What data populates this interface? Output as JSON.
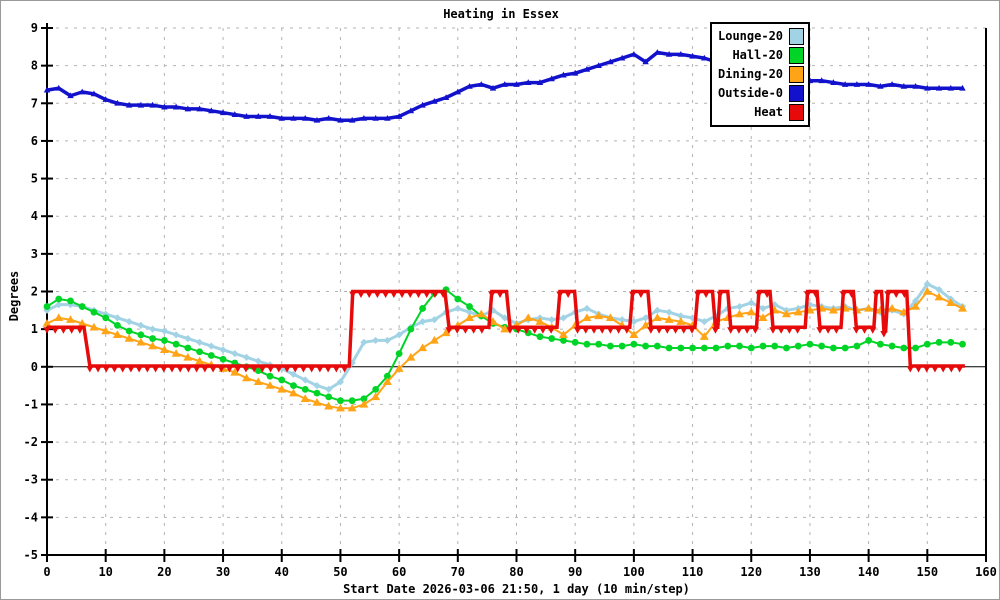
{
  "window": {
    "background": "#ffffff",
    "frame_color": "#9a9a9a"
  },
  "chart_data": {
    "type": "line",
    "title": "Heating in Essex",
    "xlabel": "Start Date 2026-03-06 21:50, 1 day (10 min/step)",
    "ylabel": "Degrees",
    "xlim": [
      0,
      160
    ],
    "ylim": [
      -5,
      9
    ],
    "xticks": [
      0,
      10,
      20,
      30,
      40,
      50,
      60,
      70,
      80,
      90,
      100,
      110,
      120,
      130,
      140,
      150,
      160
    ],
    "yticks": [
      -5,
      -4,
      -3,
      -2,
      -1,
      0,
      1,
      2,
      3,
      4,
      5,
      6,
      7,
      8,
      9
    ],
    "grid": true,
    "grid_color": "#b3b3b3",
    "zero_line_color": "#000000",
    "axis_color": "#000000",
    "legend_position": "top-right",
    "x_start": 0,
    "x_step": 2,
    "series": [
      {
        "name": "Lounge-20",
        "color": "#a2d3e5",
        "marker": "diamond",
        "line_width": 3,
        "values": [
          1.5,
          1.65,
          1.65,
          1.6,
          1.5,
          1.4,
          1.3,
          1.2,
          1.1,
          1.0,
          0.95,
          0.85,
          0.75,
          0.65,
          0.55,
          0.45,
          0.35,
          0.25,
          0.15,
          0.05,
          -0.05,
          -0.2,
          -0.35,
          -0.5,
          -0.6,
          -0.4,
          0.1,
          0.65,
          0.7,
          0.7,
          0.85,
          1.05,
          1.2,
          1.25,
          1.45,
          1.55,
          1.45,
          1.35,
          1.5,
          1.3,
          1.15,
          1.25,
          1.3,
          1.25,
          1.3,
          1.45,
          1.55,
          1.4,
          1.3,
          1.25,
          1.2,
          1.3,
          1.5,
          1.45,
          1.35,
          1.3,
          1.2,
          1.35,
          1.55,
          1.6,
          1.7,
          1.55,
          1.65,
          1.5,
          1.55,
          1.65,
          1.6,
          1.55,
          1.6,
          1.5,
          1.55,
          1.45,
          1.5,
          1.4,
          1.75,
          2.2,
          2.05,
          1.8,
          1.6
        ]
      },
      {
        "name": "Hall-20",
        "color": "#00d426",
        "marker": "circle",
        "line_width": 2,
        "values": [
          1.6,
          1.8,
          1.75,
          1.6,
          1.45,
          1.3,
          1.1,
          0.95,
          0.85,
          0.75,
          0.7,
          0.6,
          0.5,
          0.4,
          0.3,
          0.2,
          0.1,
          0.0,
          -0.1,
          -0.25,
          -0.35,
          -0.5,
          -0.6,
          -0.7,
          -0.8,
          -0.9,
          -0.9,
          -0.85,
          -0.6,
          -0.25,
          0.35,
          1.0,
          1.55,
          1.95,
          2.05,
          1.8,
          1.6,
          1.35,
          1.15,
          1.05,
          1.0,
          0.9,
          0.8,
          0.75,
          0.7,
          0.65,
          0.6,
          0.6,
          0.55,
          0.55,
          0.6,
          0.55,
          0.55,
          0.5,
          0.5,
          0.5,
          0.5,
          0.5,
          0.55,
          0.55,
          0.5,
          0.55,
          0.55,
          0.5,
          0.55,
          0.6,
          0.55,
          0.5,
          0.5,
          0.55,
          0.7,
          0.6,
          0.55,
          0.5,
          0.5,
          0.6,
          0.65,
          0.65,
          0.6
        ]
      },
      {
        "name": "Dining-20",
        "color": "#ffa317",
        "marker": "triangle",
        "line_width": 2,
        "values": [
          1.15,
          1.3,
          1.25,
          1.15,
          1.05,
          0.95,
          0.85,
          0.75,
          0.65,
          0.55,
          0.45,
          0.35,
          0.25,
          0.15,
          0.05,
          -0.05,
          -0.15,
          -0.3,
          -0.4,
          -0.5,
          -0.6,
          -0.7,
          -0.85,
          -0.95,
          -1.05,
          -1.1,
          -1.1,
          -1.0,
          -0.8,
          -0.4,
          -0.05,
          0.25,
          0.5,
          0.7,
          0.9,
          1.1,
          1.3,
          1.4,
          1.2,
          1.0,
          1.1,
          1.3,
          1.2,
          1.05,
          0.85,
          1.1,
          1.3,
          1.35,
          1.3,
          1.1,
          0.85,
          1.1,
          1.3,
          1.25,
          1.2,
          1.1,
          0.8,
          1.2,
          1.3,
          1.4,
          1.45,
          1.3,
          1.5,
          1.4,
          1.45,
          1.5,
          1.55,
          1.5,
          1.55,
          1.5,
          1.55,
          1.5,
          1.55,
          1.45,
          1.6,
          2.0,
          1.85,
          1.7,
          1.55
        ]
      },
      {
        "name": "Outside-0",
        "color": "#1212cc",
        "marker": "triangle-small",
        "line_width": 3.5,
        "values": [
          7.35,
          7.4,
          7.2,
          7.3,
          7.25,
          7.1,
          7.0,
          6.95,
          6.95,
          6.95,
          6.9,
          6.9,
          6.85,
          6.85,
          6.8,
          6.75,
          6.7,
          6.65,
          6.65,
          6.65,
          6.6,
          6.6,
          6.6,
          6.55,
          6.6,
          6.55,
          6.55,
          6.6,
          6.6,
          6.6,
          6.65,
          6.8,
          6.95,
          7.05,
          7.15,
          7.3,
          7.45,
          7.5,
          7.4,
          7.5,
          7.5,
          7.55,
          7.55,
          7.65,
          7.75,
          7.8,
          7.9,
          8.0,
          8.1,
          8.2,
          8.3,
          8.1,
          8.35,
          8.3,
          8.3,
          8.25,
          8.2,
          8.1,
          8.0,
          7.9,
          7.85,
          7.8,
          7.75,
          7.7,
          7.65,
          7.6,
          7.6,
          7.55,
          7.5,
          7.5,
          7.5,
          7.45,
          7.5,
          7.45,
          7.45,
          7.4,
          7.4,
          7.4,
          7.4
        ]
      },
      {
        "name": "Heat",
        "color": "#e60a0a",
        "marker": "triangle-down",
        "line_width": 3.5,
        "segments": [
          [
            0,
            6.3,
            1.05
          ],
          [
            7.3,
            51.5,
            0.02
          ],
          [
            52.1,
            67.8,
            2.0
          ],
          [
            68.5,
            75.3,
            1.05
          ],
          [
            75.8,
            78.3,
            2.0
          ],
          [
            78.9,
            86.9,
            1.05
          ],
          [
            87.4,
            89.9,
            2.0
          ],
          [
            90.4,
            99.3,
            1.05
          ],
          [
            99.8,
            102.4,
            2.0
          ],
          [
            102.9,
            110.4,
            1.05
          ],
          [
            110.9,
            113.4,
            2.0
          ],
          [
            113.9,
            114.3,
            1.05
          ],
          [
            114.7,
            116.0,
            2.0
          ],
          [
            116.5,
            120.9,
            1.05
          ],
          [
            121.3,
            123.2,
            2.0
          ],
          [
            123.7,
            129.2,
            1.05
          ],
          [
            129.6,
            131.2,
            2.0
          ],
          [
            131.7,
            135.3,
            1.05
          ],
          [
            135.7,
            137.4,
            2.0
          ],
          [
            137.9,
            140.9,
            1.05
          ],
          [
            141.3,
            142.2,
            2.0
          ],
          [
            142.6,
            142.9,
            0.95
          ],
          [
            143.3,
            146.5,
            2.0
          ],
          [
            147.1,
            156.4,
            0.02
          ]
        ]
      }
    ]
  }
}
